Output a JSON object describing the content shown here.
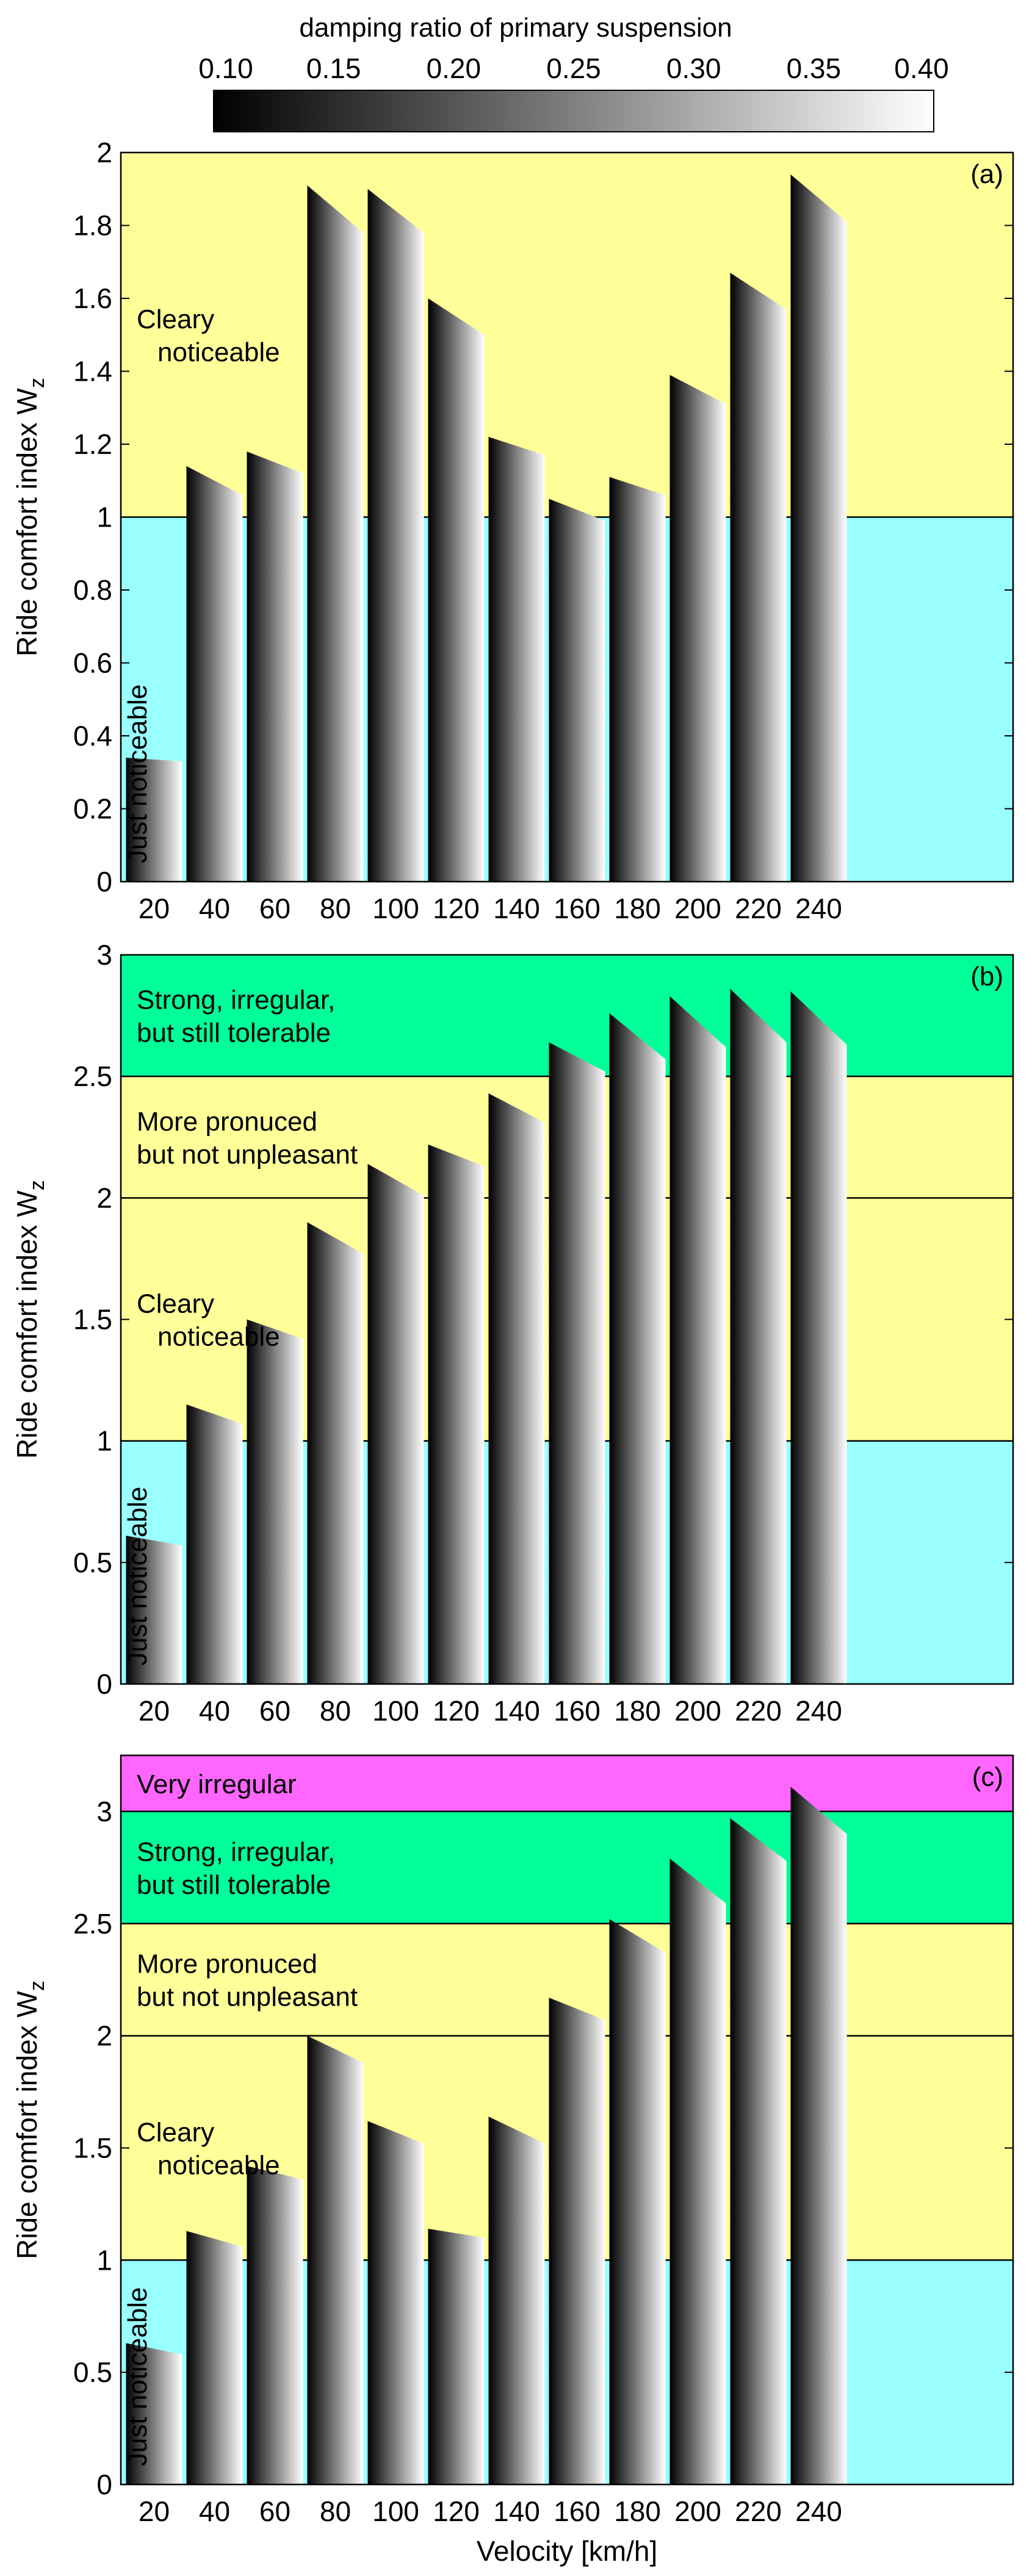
{
  "colorbar": {
    "title": "damping ratio of primary suspension",
    "ticks": [
      "0.10",
      "0.15",
      "0.20",
      "0.25",
      "0.30",
      "0.35",
      "0.40"
    ]
  },
  "colors": {
    "just_noticeable": "#99ffff",
    "cleary_noticeable": "#ffff99",
    "more_pronuced": "#ffff99",
    "strong_irregular": "#00ff99",
    "very_irregular": "#ff66ff"
  },
  "chart_data": [
    {
      "type": "bar",
      "panel_label": "(a)",
      "categories": [
        "20",
        "40",
        "60",
        "80",
        "100",
        "120",
        "140",
        "160",
        "180",
        "200",
        "220",
        "240"
      ],
      "series": [
        {
          "name": "damping ratio 0.10",
          "values": [
            0.34,
            1.14,
            1.18,
            1.91,
            1.9,
            1.6,
            1.22,
            1.05,
            1.11,
            1.39,
            1.67,
            1.94
          ]
        },
        {
          "name": "damping ratio 0.40",
          "values": [
            0.33,
            1.06,
            1.12,
            1.78,
            1.78,
            1.5,
            1.17,
            0.99,
            1.06,
            1.31,
            1.57,
            1.81
          ]
        }
      ],
      "ylim": [
        0,
        2
      ],
      "yticks": [
        "0",
        "0.2",
        "0.4",
        "0.6",
        "0.8",
        "1",
        "1.2",
        "1.4",
        "1.6",
        "1.8",
        "2"
      ],
      "ylabel": "Ride comfort index W",
      "ylabel_sub": "z",
      "xlabel": "",
      "zones": [
        {
          "from": 0,
          "to": 1,
          "color_key": "just_noticeable",
          "text": [
            "Just noticeable"
          ],
          "vertical": true
        },
        {
          "from": 1,
          "to": 2,
          "color_key": "cleary_noticeable",
          "text": [
            "Cleary",
            "noticeable"
          ]
        }
      ]
    },
    {
      "type": "bar",
      "panel_label": "(b)",
      "categories": [
        "20",
        "40",
        "60",
        "80",
        "100",
        "120",
        "140",
        "160",
        "180",
        "200",
        "220",
        "240"
      ],
      "series": [
        {
          "name": "damping ratio 0.10",
          "values": [
            0.61,
            1.15,
            1.5,
            1.9,
            2.14,
            2.22,
            2.43,
            2.64,
            2.76,
            2.83,
            2.86,
            2.85
          ]
        },
        {
          "name": "damping ratio 0.40",
          "values": [
            0.57,
            1.07,
            1.42,
            1.77,
            2.01,
            2.13,
            2.31,
            2.52,
            2.57,
            2.62,
            2.64,
            2.63
          ]
        }
      ],
      "ylim": [
        0,
        3
      ],
      "yticks": [
        "0",
        "0.5",
        "1",
        "1.5",
        "2",
        "2.5",
        "3"
      ],
      "ylabel": "Ride comfort index W",
      "ylabel_sub": "z",
      "xlabel": "",
      "zones": [
        {
          "from": 0,
          "to": 1,
          "color_key": "just_noticeable",
          "text": [
            "Just noticeable"
          ],
          "vertical": true
        },
        {
          "from": 1,
          "to": 2,
          "color_key": "cleary_noticeable",
          "text": [
            "Cleary",
            "noticeable"
          ]
        },
        {
          "from": 2,
          "to": 2.5,
          "color_key": "more_pronuced",
          "text": [
            "More pronuced",
            "but not unpleasant"
          ]
        },
        {
          "from": 2.5,
          "to": 3,
          "color_key": "strong_irregular",
          "text": [
            "Strong, irregular,",
            "but still tolerable"
          ]
        }
      ]
    },
    {
      "type": "bar",
      "panel_label": "(c)",
      "categories": [
        "20",
        "40",
        "60",
        "80",
        "100",
        "120",
        "140",
        "160",
        "180",
        "200",
        "220",
        "240"
      ],
      "series": [
        {
          "name": "damping ratio 0.10",
          "values": [
            0.63,
            1.13,
            1.42,
            2.0,
            1.62,
            1.14,
            1.64,
            2.17,
            2.52,
            2.79,
            2.97,
            3.11
          ]
        },
        {
          "name": "damping ratio 0.40",
          "values": [
            0.58,
            1.06,
            1.36,
            1.88,
            1.52,
            1.1,
            1.52,
            2.07,
            2.37,
            2.59,
            2.78,
            2.9
          ]
        }
      ],
      "ylim": [
        0,
        3.25
      ],
      "yticks": [
        "0",
        "0.5",
        "1",
        "1.5",
        "2",
        "2.5",
        "3"
      ],
      "ylabel": "Ride comfort index W",
      "ylabel_sub": "z",
      "xlabel": "Velocity [km/h]",
      "zones": [
        {
          "from": 0,
          "to": 1,
          "color_key": "just_noticeable",
          "text": [
            "Just noticeable"
          ],
          "vertical": true
        },
        {
          "from": 1,
          "to": 2,
          "color_key": "cleary_noticeable",
          "text": [
            "Cleary",
            "noticeable"
          ]
        },
        {
          "from": 2,
          "to": 2.5,
          "color_key": "more_pronuced",
          "text": [
            "More pronuced",
            "but not unpleasant"
          ]
        },
        {
          "from": 2.5,
          "to": 3,
          "color_key": "strong_irregular",
          "text": [
            "Strong, irregular,",
            "but still tolerable"
          ]
        },
        {
          "from": 3,
          "to": 3.25,
          "color_key": "very_irregular",
          "text": [
            "Very irregular"
          ]
        }
      ]
    }
  ]
}
